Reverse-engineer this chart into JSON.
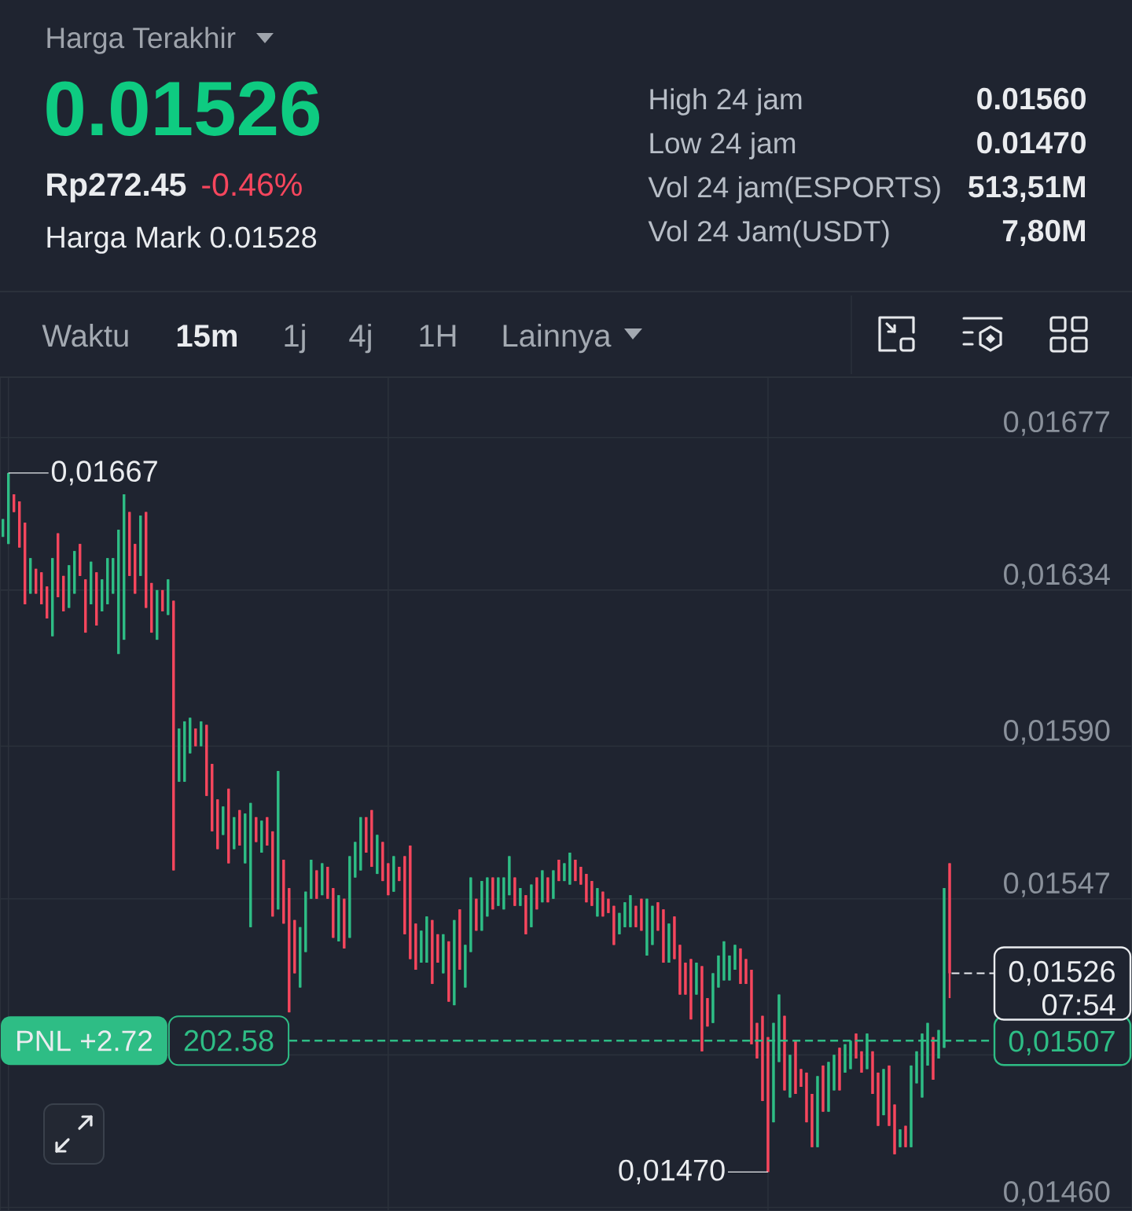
{
  "chart_data": {
    "type": "candlestick",
    "categories": [
      null,
      null,
      null,
      null,
      null,
      null,
      null,
      null,
      null,
      null,
      null,
      null,
      null,
      null,
      null,
      null,
      null,
      null,
      null,
      null,
      null,
      null,
      null,
      null,
      null,
      null,
      null,
      null,
      null,
      null,
      null,
      null,
      null,
      null,
      null,
      null,
      null,
      null,
      null,
      null,
      null,
      null,
      null,
      null,
      null,
      null,
      null,
      null,
      null,
      null,
      null,
      null,
      null,
      null,
      null,
      null,
      null,
      null,
      null,
      null,
      null,
      null,
      null,
      null,
      null,
      null,
      null,
      null,
      null,
      null,
      null,
      null,
      null,
      null,
      null,
      null,
      null,
      null,
      null,
      null,
      null,
      null,
      null,
      null,
      null,
      null,
      null,
      null,
      null,
      null,
      null,
      null,
      null,
      null,
      null,
      null,
      null,
      null,
      null,
      null,
      null,
      null,
      null,
      null,
      null,
      null,
      null,
      null,
      null,
      null,
      null,
      null,
      null,
      null,
      null,
      null,
      null,
      null,
      null,
      null,
      null,
      null,
      null,
      null,
      null,
      null,
      null,
      null,
      null,
      null,
      null,
      null,
      null,
      null,
      null,
      null,
      null,
      null,
      null,
      null,
      null,
      null,
      null,
      null,
      null,
      null,
      null,
      null,
      null,
      null,
      null,
      null,
      null,
      null,
      null,
      null,
      null,
      null,
      null,
      null,
      null,
      null,
      null,
      null,
      null,
      null,
      null,
      null,
      null,
      null,
      null,
      null,
      null
    ],
    "ohlc": [
      [
        0.01649,
        0.01654,
        0.01649,
        0.01654
      ],
      [
        0.01647,
        0.01667,
        0.01647,
        0.01667
      ],
      [
        0.01661,
        0.01661,
        0.01656,
        0.01656
      ],
      [
        0.01659,
        0.01659,
        0.01646,
        0.01646
      ],
      [
        0.01653,
        0.01653,
        0.0163,
        0.0163
      ],
      [
        0.01633,
        0.01643,
        0.01633,
        0.01643
      ],
      [
        0.0164,
        0.0164,
        0.01633,
        0.01633
      ],
      [
        0.01639,
        0.01639,
        0.0163,
        0.0163
      ],
      [
        0.01635,
        0.01635,
        0.01626,
        0.01626
      ],
      [
        0.01621,
        0.01643,
        0.01621,
        0.01643
      ],
      [
        0.0165,
        0.0165,
        0.01632,
        0.01632
      ],
      [
        0.01638,
        0.01638,
        0.01628,
        0.01628
      ],
      [
        0.01629,
        0.01641,
        0.01629,
        0.01641
      ],
      [
        0.01633,
        0.01645,
        0.01633,
        0.01645
      ],
      [
        0.01647,
        0.01647,
        0.01638,
        0.01638
      ],
      [
        0.01637,
        0.01637,
        0.01622,
        0.01622
      ],
      [
        0.0163,
        0.01642,
        0.0163,
        0.01642
      ],
      [
        0.01639,
        0.01639,
        0.01624,
        0.01624
      ],
      [
        0.01628,
        0.01637,
        0.01628,
        0.01637
      ],
      [
        0.0163,
        0.01643,
        0.0163,
        0.01643
      ],
      [
        0.01633,
        0.01643,
        0.01633,
        0.01643
      ],
      [
        0.01616,
        0.01651,
        0.01616,
        0.01651
      ],
      [
        0.0162,
        0.01661,
        0.0162,
        0.01661
      ],
      [
        0.01656,
        0.01656,
        0.01638,
        0.01638
      ],
      [
        0.01647,
        0.01647,
        0.01633,
        0.01633
      ],
      [
        0.01638,
        0.01655,
        0.01638,
        0.01655
      ],
      [
        0.01656,
        0.01656,
        0.01629,
        0.01629
      ],
      [
        0.01636,
        0.01636,
        0.01622,
        0.01622
      ],
      [
        0.0162,
        0.01634,
        0.0162,
        0.01634
      ],
      [
        0.01634,
        0.01634,
        0.01628,
        0.01628
      ],
      [
        0.01627,
        0.01637,
        0.01627,
        0.01637
      ],
      [
        0.01631,
        0.01631,
        0.01555,
        0.01555
      ],
      [
        0.0158,
        0.01595,
        0.0158,
        0.01595
      ],
      [
        0.0158,
        0.01597,
        0.0158,
        0.01597
      ],
      [
        0.01588,
        0.01598,
        0.01588,
        0.01598
      ],
      [
        0.01595,
        0.01595,
        0.0159,
        0.0159
      ],
      [
        0.0159,
        0.01597,
        0.0159,
        0.01597
      ],
      [
        0.01596,
        0.01596,
        0.01576,
        0.01576
      ],
      [
        0.01585,
        0.01585,
        0.01566,
        0.01566
      ],
      [
        0.01575,
        0.01575,
        0.01561,
        0.01561
      ],
      [
        0.01565,
        0.01573,
        0.01565,
        0.01573
      ],
      [
        0.01578,
        0.01578,
        0.01557,
        0.01557
      ],
      [
        0.01561,
        0.0157,
        0.01561,
        0.0157
      ],
      [
        0.01572,
        0.01572,
        0.01562,
        0.01562
      ],
      [
        0.01557,
        0.01571,
        0.01557,
        0.01571
      ],
      [
        0.01539,
        0.01574,
        0.01539,
        0.01574
      ],
      [
        0.0157,
        0.0157,
        0.01563,
        0.01563
      ],
      [
        0.0156,
        0.01569,
        0.0156,
        0.01569
      ],
      [
        0.0157,
        0.0157,
        0.01562,
        0.01562
      ],
      [
        0.01566,
        0.01566,
        0.01542,
        0.01542
      ],
      [
        0.01544,
        0.01583,
        0.01544,
        0.01583
      ],
      [
        0.01558,
        0.01558,
        0.0154,
        0.0154
      ],
      [
        0.0155,
        0.0155,
        0.01515,
        0.01515
      ],
      [
        0.01541,
        0.01541,
        0.01526,
        0.01526
      ],
      [
        0.01522,
        0.01539,
        0.01522,
        0.01539
      ],
      [
        0.01532,
        0.01549,
        0.01532,
        0.01549
      ],
      [
        0.01547,
        0.01558,
        0.01547,
        0.01558
      ],
      [
        0.01555,
        0.01555,
        0.01547,
        0.01547
      ],
      [
        0.01548,
        0.01557,
        0.01548,
        0.01557
      ],
      [
        0.01556,
        0.01556,
        0.01547,
        0.01547
      ],
      [
        0.0155,
        0.0155,
        0.01536,
        0.01536
      ],
      [
        0.01535,
        0.01548,
        0.01535,
        0.01548
      ],
      [
        0.01547,
        0.01547,
        0.01533,
        0.01533
      ],
      [
        0.01536,
        0.01559,
        0.01536,
        0.01559
      ],
      [
        0.01553,
        0.01563,
        0.01553,
        0.01563
      ],
      [
        0.01555,
        0.0157,
        0.01555,
        0.0157
      ],
      [
        0.0157,
        0.0157,
        0.0156,
        0.0156
      ],
      [
        0.01572,
        0.01572,
        0.01556,
        0.01556
      ],
      [
        0.01554,
        0.01565,
        0.01554,
        0.01565
      ],
      [
        0.01563,
        0.01563,
        0.01552,
        0.01552
      ],
      [
        0.01557,
        0.01557,
        0.01548,
        0.01548
      ],
      [
        0.01549,
        0.01559,
        0.01549,
        0.01559
      ],
      [
        0.01556,
        0.01556,
        0.01552,
        0.01552
      ],
      [
        0.01559,
        0.01559,
        0.01537,
        0.01537
      ],
      [
        0.01562,
        0.01562,
        0.0153,
        0.0153
      ],
      [
        0.0154,
        0.0154,
        0.01527,
        0.01527
      ],
      [
        0.01529,
        0.01538,
        0.01529,
        0.01538
      ],
      [
        0.01529,
        0.01542,
        0.01529,
        0.01542
      ],
      [
        0.01541,
        0.01541,
        0.01523,
        0.01523
      ],
      [
        0.01537,
        0.01537,
        0.01529,
        0.01529
      ],
      [
        0.01526,
        0.01537,
        0.01526,
        0.01537
      ],
      [
        0.01535,
        0.01535,
        0.01518,
        0.01518
      ],
      [
        0.01517,
        0.01541,
        0.01517,
        0.01541
      ],
      [
        0.01544,
        0.01544,
        0.01527,
        0.01527
      ],
      [
        0.01522,
        0.01534,
        0.01522,
        0.01534
      ],
      [
        0.01532,
        0.01553,
        0.01532,
        0.01553
      ],
      [
        0.01547,
        0.01547,
        0.01538,
        0.01538
      ],
      [
        0.01538,
        0.01552,
        0.01538,
        0.01552
      ],
      [
        0.01542,
        0.01553,
        0.01542,
        0.01553
      ],
      [
        0.01553,
        0.01553,
        0.01544,
        0.01544
      ],
      [
        0.01545,
        0.01553,
        0.01545,
        0.01553
      ],
      [
        0.01544,
        0.01553,
        0.01544,
        0.01553
      ],
      [
        0.01548,
        0.01559,
        0.01548,
        0.01559
      ],
      [
        0.01553,
        0.01553,
        0.01545,
        0.01545
      ],
      [
        0.01545,
        0.0155,
        0.01545,
        0.0155
      ],
      [
        0.01548,
        0.01548,
        0.01537,
        0.01537
      ],
      [
        0.01539,
        0.01551,
        0.01539,
        0.01551
      ],
      [
        0.01553,
        0.01553,
        0.01544,
        0.01544
      ],
      [
        0.01546,
        0.01555,
        0.01546,
        0.01555
      ],
      [
        0.01553,
        0.01553,
        0.01546,
        0.01546
      ],
      [
        0.01547,
        0.01555,
        0.01547,
        0.01555
      ],
      [
        0.01558,
        0.01558,
        0.01552,
        0.01552
      ],
      [
        0.01552,
        0.01557,
        0.01552,
        0.01557
      ],
      [
        0.01551,
        0.0156,
        0.01551,
        0.0156
      ],
      [
        0.01558,
        0.01558,
        0.01552,
        0.01552
      ],
      [
        0.01556,
        0.01556,
        0.01551,
        0.01551
      ],
      [
        0.01554,
        0.01554,
        0.01546,
        0.01546
      ],
      [
        0.01552,
        0.01552,
        0.01545,
        0.01545
      ],
      [
        0.01542,
        0.0155,
        0.01542,
        0.0155
      ],
      [
        0.01549,
        0.01549,
        0.01542,
        0.01542
      ],
      [
        0.01547,
        0.01547,
        0.01543,
        0.01543
      ],
      [
        0.01545,
        0.01545,
        0.01534,
        0.01534
      ],
      [
        0.01537,
        0.01543,
        0.01537,
        0.01543
      ],
      [
        0.01539,
        0.01546,
        0.01539,
        0.01546
      ],
      [
        0.01539,
        0.01548,
        0.01539,
        0.01548
      ],
      [
        0.01545,
        0.01545,
        0.01539,
        0.01539
      ],
      [
        0.01547,
        0.01547,
        0.01538,
        0.01538
      ],
      [
        0.01531,
        0.01547,
        0.01531,
        0.01547
      ],
      [
        0.01534,
        0.01545,
        0.01534,
        0.01545
      ],
      [
        0.01546,
        0.01546,
        0.01538,
        0.01538
      ],
      [
        0.01544,
        0.01544,
        0.01529,
        0.01529
      ],
      [
        0.01529,
        0.0154,
        0.01529,
        0.0154
      ],
      [
        0.01542,
        0.01542,
        0.0153,
        0.0153
      ],
      [
        0.01534,
        0.01534,
        0.0152,
        0.0152
      ],
      [
        0.01529,
        0.01529,
        0.0152,
        0.0152
      ],
      [
        0.0153,
        0.0153,
        0.01513,
        0.01513
      ],
      [
        0.0152,
        0.01529,
        0.0152,
        0.01529
      ],
      [
        0.01528,
        0.01528,
        0.01504,
        0.01504
      ],
      [
        0.01519,
        0.01519,
        0.01511,
        0.01511
      ],
      [
        0.01512,
        0.01526,
        0.01512,
        0.01526
      ],
      [
        0.01522,
        0.01531,
        0.01522,
        0.01531
      ],
      [
        0.01524,
        0.01535,
        0.01524,
        0.01535
      ],
      [
        0.01524,
        0.01531,
        0.01524,
        0.01531
      ],
      [
        0.01527,
        0.01534,
        0.01527,
        0.01534
      ],
      [
        0.01533,
        0.01533,
        0.01523,
        0.01523
      ],
      [
        0.0153,
        0.0153,
        0.01523,
        0.01523
      ],
      [
        0.01527,
        0.01527,
        0.01506,
        0.01506
      ],
      [
        0.01512,
        0.01512,
        0.01502,
        0.01502
      ],
      [
        0.01514,
        0.01514,
        0.0149,
        0.0149
      ],
      [
        0.01508,
        0.01508,
        0.0147,
        0.0147
      ],
      [
        0.01484,
        0.01512,
        0.01484,
        0.01512
      ],
      [
        0.01501,
        0.0152,
        0.01501,
        0.0152
      ],
      [
        0.01514,
        0.01514,
        0.01493,
        0.01493
      ],
      [
        0.01491,
        0.01503,
        0.01491,
        0.01503
      ],
      [
        0.01507,
        0.01507,
        0.01492,
        0.01492
      ],
      [
        0.01499,
        0.01499,
        0.01494,
        0.01494
      ],
      [
        0.01498,
        0.01498,
        0.01484,
        0.01484
      ],
      [
        0.01492,
        0.01492,
        0.01477,
        0.01477
      ],
      [
        0.01477,
        0.01497,
        0.01477,
        0.01497
      ],
      [
        0.015,
        0.015,
        0.01487,
        0.01487
      ],
      [
        0.01487,
        0.01501,
        0.01487,
        0.01501
      ],
      [
        0.01493,
        0.01503,
        0.01493,
        0.01503
      ],
      [
        0.01505,
        0.01505,
        0.01493,
        0.01493
      ],
      [
        0.01498,
        0.01506,
        0.01498,
        0.01506
      ],
      [
        0.01499,
        0.01507,
        0.01499,
        0.01507
      ],
      [
        0.01509,
        0.01509,
        0.01502,
        0.01502
      ],
      [
        0.01504,
        0.01504,
        0.01498,
        0.01498
      ],
      [
        0.01499,
        0.01509,
        0.01499,
        0.01509
      ],
      [
        0.01504,
        0.01504,
        0.01492,
        0.01492
      ],
      [
        0.01498,
        0.01498,
        0.01483,
        0.01483
      ],
      [
        0.01486,
        0.01499,
        0.01486,
        0.01499
      ],
      [
        0.015,
        0.015,
        0.01483,
        0.01483
      ],
      [
        0.01489,
        0.01489,
        0.01475,
        0.01475
      ],
      [
        0.01477,
        0.01482,
        0.01477,
        0.01482
      ],
      [
        0.01483,
        0.01483,
        0.01477,
        0.01477
      ],
      [
        0.01477,
        0.015,
        0.01477,
        0.015
      ],
      [
        0.01495,
        0.01504,
        0.01495,
        0.01504
      ],
      [
        0.01491,
        0.01509,
        0.01491,
        0.01509
      ],
      [
        0.015,
        0.01512,
        0.015,
        0.01512
      ],
      [
        0.01508,
        0.01508,
        0.01496,
        0.01496
      ],
      [
        0.01502,
        0.0151,
        0.01502,
        0.0151
      ],
      [
        0.01505,
        0.0155,
        0.01505,
        0.0155
      ],
      [
        0.01557,
        0.01557,
        0.01519,
        0.01526
      ]
    ],
    "colors": [
      "#2ebd85",
      "#2ebd85",
      "#f6465d",
      "#f6465d",
      "#f6465d",
      "#2ebd85",
      "#f6465d",
      "#f6465d",
      "#f6465d",
      "#2ebd85",
      "#f6465d",
      "#f6465d",
      "#2ebd85",
      "#2ebd85",
      "#f6465d",
      "#f6465d",
      "#2ebd85",
      "#f6465d",
      "#2ebd85",
      "#2ebd85",
      "#2ebd85",
      "#2ebd85",
      "#2ebd85",
      "#f6465d",
      "#f6465d",
      "#2ebd85",
      "#f6465d",
      "#f6465d",
      "#2ebd85",
      "#f6465d",
      "#2ebd85",
      "#f6465d",
      "#2ebd85",
      "#2ebd85",
      "#2ebd85",
      "#f6465d",
      "#2ebd85",
      "#f6465d",
      "#f6465d",
      "#f6465d",
      "#2ebd85",
      "#f6465d",
      "#2ebd85",
      "#f6465d",
      "#2ebd85",
      "#2ebd85",
      "#f6465d",
      "#2ebd85",
      "#f6465d",
      "#f6465d",
      "#2ebd85",
      "#f6465d",
      "#f6465d",
      "#f6465d",
      "#2ebd85",
      "#2ebd85",
      "#2ebd85",
      "#f6465d",
      "#2ebd85",
      "#f6465d",
      "#f6465d",
      "#2ebd85",
      "#f6465d",
      "#2ebd85",
      "#2ebd85",
      "#2ebd85",
      "#f6465d",
      "#f6465d",
      "#2ebd85",
      "#f6465d",
      "#f6465d",
      "#2ebd85",
      "#f6465d",
      "#f6465d",
      "#f6465d",
      "#f6465d",
      "#2ebd85",
      "#2ebd85",
      "#f6465d",
      "#f6465d",
      "#2ebd85",
      "#f6465d",
      "#2ebd85",
      "#f6465d",
      "#2ebd85",
      "#2ebd85",
      "#f6465d",
      "#2ebd85",
      "#2ebd85",
      "#f6465d",
      "#2ebd85",
      "#2ebd85",
      "#2ebd85",
      "#f6465d",
      "#2ebd85",
      "#f6465d",
      "#2ebd85",
      "#f6465d",
      "#2ebd85",
      "#f6465d",
      "#2ebd85",
      "#f6465d",
      "#2ebd85",
      "#2ebd85",
      "#f6465d",
      "#f6465d",
      "#f6465d",
      "#f6465d",
      "#2ebd85",
      "#f6465d",
      "#f6465d",
      "#f6465d",
      "#2ebd85",
      "#2ebd85",
      "#2ebd85",
      "#f6465d",
      "#f6465d",
      "#2ebd85",
      "#2ebd85",
      "#f6465d",
      "#f6465d",
      "#2ebd85",
      "#f6465d",
      "#f6465d",
      "#f6465d",
      "#f6465d",
      "#2ebd85",
      "#f6465d",
      "#f6465d",
      "#2ebd85",
      "#2ebd85",
      "#2ebd85",
      "#2ebd85",
      "#2ebd85",
      "#f6465d",
      "#f6465d",
      "#f6465d",
      "#f6465d",
      "#f6465d",
      "#f6465d",
      "#2ebd85",
      "#2ebd85",
      "#f6465d",
      "#2ebd85",
      "#f6465d",
      "#f6465d",
      "#f6465d",
      "#f6465d",
      "#2ebd85",
      "#f6465d",
      "#2ebd85",
      "#2ebd85",
      "#f6465d",
      "#2ebd85",
      "#2ebd85",
      "#f6465d",
      "#f6465d",
      "#2ebd85",
      "#f6465d",
      "#f6465d",
      "#2ebd85",
      "#f6465d",
      "#f6465d",
      "#2ebd85",
      "#f6465d",
      "#2ebd85",
      "#2ebd85",
      "#2ebd85",
      "#2ebd85",
      "#f6465d",
      "#2ebd85",
      "#2ebd85",
      "#f6465d"
    ],
    "ylim": [
      0.01459,
      0.01694
    ],
    "yticks": [
      {
        "value": 0.01677,
        "label": "0,01677"
      },
      {
        "value": 0.01634,
        "label": "0,01634"
      },
      {
        "value": 0.0159,
        "label": "0,01590"
      },
      {
        "value": 0.01547,
        "label": "0,01547"
      },
      {
        "value": 0.01503,
        "label": null
      },
      {
        "value": 0.0146,
        "label": "0,01460"
      }
    ],
    "grid": true,
    "tick_labels": "y",
    "ref_lines": [
      {
        "axis": "y",
        "value": 0.01507,
        "label": "0,01507",
        "color": "#2ebd85",
        "line_style": "dashed"
      },
      {
        "axis": "y",
        "value": 0.01526,
        "label": "0,01526",
        "color": "#eaecef",
        "line_style": "dashed"
      }
    ],
    "annotations": [
      "Harga Terakhir",
      "0.01526",
      "Rp272.45",
      "-0.46%",
      "Harga Mark 0.01528",
      "High 24 jam",
      "0.01560",
      "Low 24 jam",
      "0.01470",
      "Vol 24 jam(ESPORTS)",
      "513,51M",
      "Vol 24 Jam(USDT)",
      "7,80M",
      "Waktu",
      "15m",
      "1j",
      "4j",
      "1H",
      "Lainnya",
      "0,01667",
      "0,01470",
      "PNL +2.72",
      "202.58",
      "07:54"
    ]
  }
}
